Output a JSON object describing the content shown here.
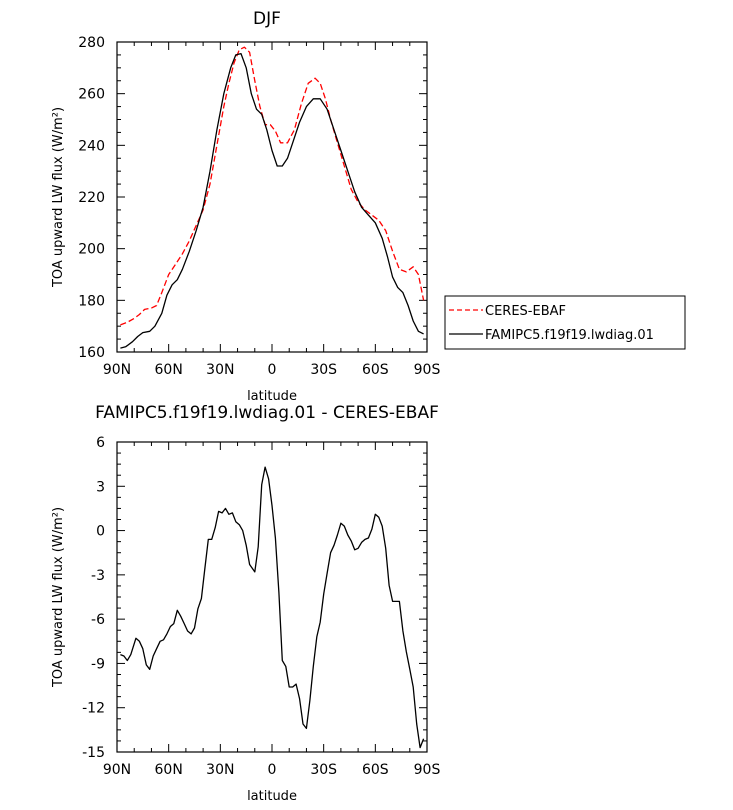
{
  "chart_data": [
    {
      "type": "line",
      "title": "DJF",
      "xlabel": "latitude",
      "ylabel": "TOA upward LW flux (W/m²)",
      "xlim": [
        90,
        -90
      ],
      "ylim": [
        160,
        280
      ],
      "x_tick_values": [
        90,
        60,
        30,
        0,
        -30,
        -60,
        -90
      ],
      "x_tick_labels": [
        "90N",
        "60N",
        "30N",
        "0",
        "30S",
        "60S",
        "90S"
      ],
      "y_tick_values": [
        160,
        180,
        200,
        220,
        240,
        260,
        280
      ],
      "y_tick_labels": [
        "160",
        "180",
        "200",
        "220",
        "240",
        "260",
        "280"
      ],
      "legend_position": "right",
      "series": [
        {
          "name": "CERES-EBAF",
          "color": "#ff0000",
          "style": "dashed",
          "x": [
            88,
            84,
            80,
            77,
            74,
            70,
            67,
            64,
            60,
            56,
            52,
            48,
            44,
            40,
            36,
            32,
            28,
            25,
            22,
            19,
            16,
            13,
            10,
            7,
            4,
            1,
            -2,
            -5,
            -9,
            -13,
            -17,
            -21,
            -25,
            -28,
            -31,
            -34,
            -38,
            -42,
            -46,
            -50,
            -54,
            -58,
            -62,
            -66,
            -70,
            -74,
            -78,
            -82,
            -85,
            -88
          ],
          "y": [
            170.5,
            171.5,
            173,
            174.5,
            176.5,
            177,
            178,
            183,
            190,
            194,
            198,
            203,
            209,
            215,
            225,
            240,
            255,
            264,
            272,
            277,
            278,
            276,
            265,
            255,
            248,
            248,
            245.5,
            241,
            241,
            246,
            256,
            264,
            266,
            264,
            258,
            250,
            241,
            232,
            223,
            218,
            215,
            213,
            211,
            207,
            199,
            192,
            191,
            193,
            190,
            180
          ]
        },
        {
          "name": "FAMIPC5.f19f19.lwdiag.01",
          "color": "#000000",
          "style": "solid",
          "x": [
            88,
            85,
            81,
            78,
            75,
            71,
            68,
            64,
            61,
            58,
            55,
            52,
            48,
            44,
            40,
            36,
            32,
            28,
            24,
            21,
            18,
            15,
            12,
            9,
            6,
            3,
            0,
            -3,
            -6,
            -9,
            -12,
            -16,
            -20,
            -24,
            -28,
            -32,
            -36,
            -40,
            -44,
            -48,
            -52,
            -56,
            -60,
            -64,
            -67,
            -70,
            -73,
            -76,
            -79,
            -82,
            -85,
            -88
          ],
          "y": [
            161.5,
            162,
            164,
            166,
            167.5,
            168,
            170,
            175,
            182,
            186,
            188,
            192,
            199,
            207,
            216,
            230,
            246,
            260,
            270,
            275,
            275.5,
            270,
            260,
            254,
            252,
            246,
            238,
            232,
            232,
            235,
            241,
            249,
            255,
            258,
            258,
            254,
            246,
            238,
            230,
            222,
            216,
            213,
            210,
            204,
            197,
            189,
            185,
            183,
            178,
            172,
            168,
            167
          ]
        }
      ]
    },
    {
      "type": "line",
      "title": "FAMIPC5.f19f19.lwdiag.01 - CERES-EBAF",
      "xlabel": "latitude",
      "ylabel": "TOA upward LW flux (W/m²)",
      "xlim": [
        90,
        -90
      ],
      "ylim": [
        -15,
        6
      ],
      "x_tick_values": [
        90,
        60,
        30,
        0,
        -30,
        -60,
        -90
      ],
      "x_tick_labels": [
        "90N",
        "60N",
        "30N",
        "0",
        "30S",
        "60S",
        "90S"
      ],
      "y_tick_values": [
        -15,
        -12,
        -9,
        -6,
        -3,
        0,
        3,
        6
      ],
      "y_tick_labels": [
        "-15",
        "-12",
        "-9",
        "-6",
        "-3",
        "0",
        "3",
        "6"
      ],
      "series": [
        {
          "name": "",
          "color": "#000000",
          "style": "solid",
          "x": [
            88,
            86,
            84,
            82,
            79,
            77,
            75,
            73,
            71,
            69,
            67,
            65,
            63,
            61,
            59,
            57,
            55,
            53,
            51,
            49,
            47,
            45,
            43,
            41,
            39,
            37,
            35,
            33,
            31,
            29,
            27,
            25,
            23,
            21,
            19,
            17,
            15,
            13,
            10,
            8,
            6,
            4,
            2,
            0,
            -2,
            -4,
            -6,
            -8,
            -10,
            -12,
            -14,
            -16,
            -18,
            -20,
            -22,
            -24,
            -26,
            -28,
            -30,
            -32,
            -34,
            -36,
            -38,
            -40,
            -42,
            -44,
            -46,
            -48,
            -50,
            -52,
            -54,
            -56,
            -58,
            -60,
            -62,
            -64,
            -66,
            -68,
            -70,
            -72,
            -74,
            -76,
            -78,
            -80,
            -82,
            -84,
            -86,
            -88
          ],
          "y": [
            -8.4,
            -8.5,
            -8.8,
            -8.4,
            -7.3,
            -7.5,
            -8,
            -9.1,
            -9.4,
            -8.5,
            -8,
            -7.5,
            -7.4,
            -7,
            -6.5,
            -6.3,
            -5.4,
            -5.8,
            -6.3,
            -6.8,
            -7,
            -6.6,
            -5.3,
            -4.6,
            -2.6,
            -0.6,
            -0.6,
            0.2,
            1.3,
            1.2,
            1.5,
            1.1,
            1.2,
            0.6,
            0.4,
            0,
            -1,
            -2.3,
            -2.8,
            -1.1,
            3.1,
            4.3,
            3.5,
            1.7,
            -0.5,
            -4.2,
            -8.8,
            -9.2,
            -10.6,
            -10.6,
            -10.4,
            -11.4,
            -13.1,
            -13.4,
            -11.5,
            -9.2,
            -7.2,
            -6.2,
            -4.3,
            -2.9,
            -1.5,
            -1,
            -0.3,
            0.5,
            0.3,
            -0.3,
            -0.7,
            -1.3,
            -1.2,
            -0.8,
            -0.6,
            -0.5,
            0.1,
            1.1,
            0.9,
            0.3,
            -1.2,
            -3.7,
            -4.8,
            -4.8,
            -4.8,
            -6.8,
            -8.2,
            -9.4,
            -10.6,
            -13.1,
            -14.7,
            -14.1
          ]
        }
      ]
    }
  ],
  "legend": {
    "entries": [
      {
        "label": "CERES-EBAF",
        "color": "#ff0000",
        "style": "dashed"
      },
      {
        "label": "FAMIPC5.f19f19.lwdiag.01",
        "color": "#000000",
        "style": "solid"
      }
    ]
  }
}
